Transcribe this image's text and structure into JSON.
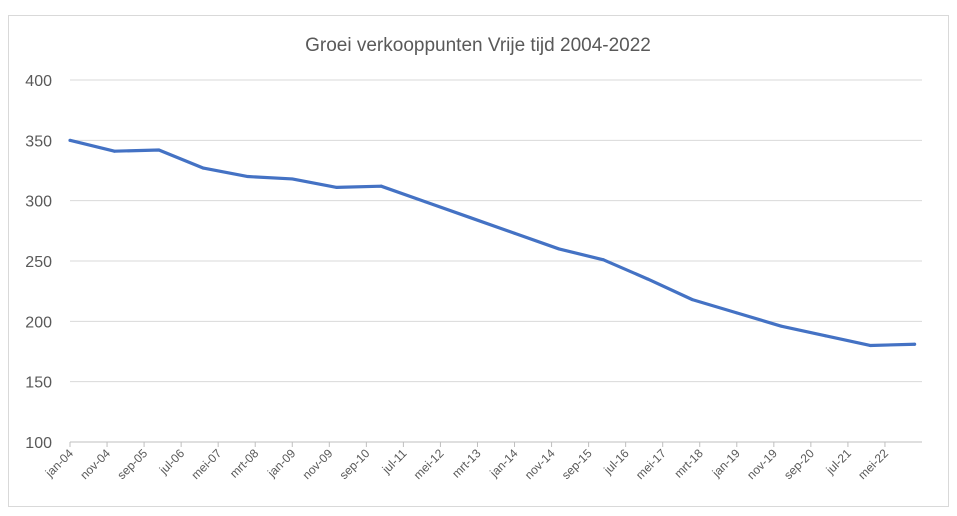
{
  "chart_data": {
    "type": "line",
    "title": "Groei verkooppunten Vrije tijd 2004-2022",
    "xlabel": "",
    "ylabel": "",
    "ylim": [
      100,
      400
    ],
    "yticks": [
      100,
      150,
      200,
      250,
      300,
      350,
      400
    ],
    "xlim_months_from_jan04": [
      0,
      230
    ],
    "xtick_labels": [
      "jan-04",
      "nov-04",
      "sep-05",
      "jul-06",
      "mei-07",
      "mrt-08",
      "jan-09",
      "nov-09",
      "sep-10",
      "jul-11",
      "mei-12",
      "mrt-13",
      "jan-14",
      "nov-14",
      "sep-15",
      "jul-16",
      "mei-17",
      "mrt-18",
      "jan-19",
      "nov-19",
      "sep-20",
      "jul-21",
      "mei-22"
    ],
    "xtick_interval_months": 10,
    "grid": true,
    "legend": "none",
    "series": [
      {
        "name": "Vrije tijd",
        "color": "#4472c4",
        "x_months_from_jan04": [
          0,
          12,
          24,
          36,
          48,
          60,
          72,
          84,
          96,
          108,
          120,
          132,
          144,
          156,
          168,
          180,
          192,
          204,
          216,
          228
        ],
        "values": [
          350,
          341,
          342,
          327,
          320,
          318,
          311,
          312,
          299,
          286,
          273,
          260,
          251,
          235,
          218,
          207,
          196,
          188,
          180,
          181
        ]
      }
    ]
  }
}
